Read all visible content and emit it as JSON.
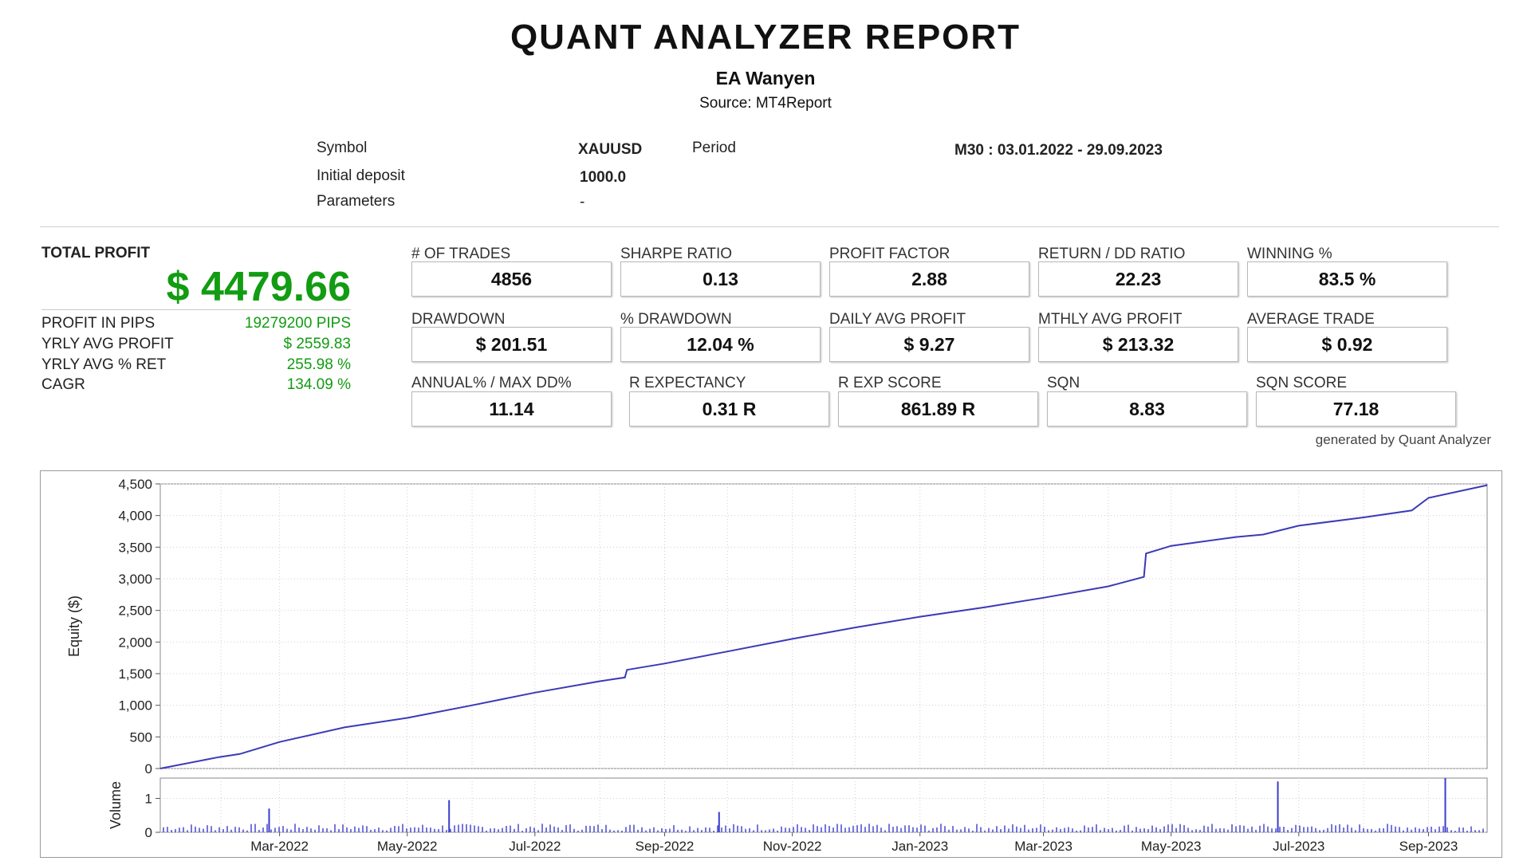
{
  "header": {
    "title": "QUANT ANALYZER REPORT",
    "subtitle": "EA Wanyen",
    "source": "Source: MT4Report"
  },
  "meta": {
    "symbol_label": "Symbol",
    "symbol_value": "XAUUSD",
    "period_label": "Period",
    "period_value": "M30 : 03.01.2022 - 29.09.2023",
    "deposit_label": "Initial deposit",
    "deposit_value": "1000.0",
    "params_label": "Parameters",
    "params_value": "-"
  },
  "summary": {
    "total_profit_label": "TOTAL PROFIT",
    "total_profit_value": "$ 4479.66",
    "profit_pips_label": "PROFIT IN PIPS",
    "profit_pips_value": "19279200 PIPS",
    "yrly_avg_profit_label": "YRLY AVG PROFIT",
    "yrly_avg_profit_value": "$ 2559.83",
    "yrly_avg_ret_label": "YRLY AVG % RET",
    "yrly_avg_ret_value": "255.98 %",
    "cagr_label": "CAGR",
    "cagr_value": "134.09 %"
  },
  "stats": {
    "row1": [
      {
        "label": "# OF TRADES",
        "value": "4856"
      },
      {
        "label": "SHARPE RATIO",
        "value": "0.13"
      },
      {
        "label": "PROFIT FACTOR",
        "value": "2.88"
      },
      {
        "label": "RETURN / DD RATIO",
        "value": "22.23"
      },
      {
        "label": "WINNING %",
        "value": "83.5 %"
      }
    ],
    "row2": [
      {
        "label": "DRAWDOWN",
        "value": "$ 201.51"
      },
      {
        "label": "% DRAWDOWN",
        "value": "12.04 %"
      },
      {
        "label": "DAILY AVG PROFIT",
        "value": "$ 9.27"
      },
      {
        "label": "MTHLY AVG PROFIT",
        "value": "$ 213.32"
      },
      {
        "label": "AVERAGE TRADE",
        "value": "$ 0.92"
      }
    ],
    "row3": [
      {
        "label": "ANNUAL% / MAX DD%",
        "value": "11.14"
      },
      {
        "label": "R EXPECTANCY",
        "value": "0.31 R"
      },
      {
        "label": "R EXP SCORE",
        "value": "861.89 R"
      },
      {
        "label": "SQN",
        "value": "8.83"
      },
      {
        "label": "SQN SCORE",
        "value": "77.18"
      }
    ]
  },
  "generated_by": "generated by Quant Analyzer",
  "colors": {
    "profit_green": "#129c12",
    "series_line": "#3a3ab8",
    "volume_bar": "#3b3bcc"
  },
  "chart_data": [
    {
      "type": "line",
      "ylabel": "Equity ($)",
      "ylim": [
        0,
        4500
      ],
      "yticks": [
        0,
        500,
        1000,
        1500,
        2000,
        2500,
        3000,
        3500,
        4000,
        4500
      ],
      "ytick_labels": [
        "0",
        "500",
        "1,000",
        "1,500",
        "2,000",
        "2,500",
        "3,000",
        "3,500",
        "4,000",
        "4,500"
      ],
      "grid": true,
      "x": [
        "2022-01-03",
        "2022-01-31",
        "2022-02-10",
        "2022-03-01",
        "2022-04-01",
        "2022-05-01",
        "2022-06-01",
        "2022-07-01",
        "2022-08-01",
        "2022-08-13",
        "2022-08-14",
        "2022-09-01",
        "2022-10-01",
        "2022-11-01",
        "2022-12-01",
        "2023-01-01",
        "2023-02-01",
        "2023-03-01",
        "2023-04-01",
        "2023-04-18",
        "2023-04-19",
        "2023-05-01",
        "2023-06-01",
        "2023-06-14",
        "2023-07-01",
        "2023-08-01",
        "2023-08-24",
        "2023-09-01",
        "2023-09-29"
      ],
      "values": [
        0,
        180,
        230,
        420,
        650,
        800,
        1000,
        1200,
        1380,
        1440,
        1560,
        1660,
        1850,
        2050,
        2230,
        2400,
        2550,
        2700,
        2880,
        3030,
        3400,
        3520,
        3660,
        3700,
        3840,
        3970,
        4080,
        4280,
        4480
      ]
    },
    {
      "type": "bar",
      "ylabel": "Volume",
      "ylim": [
        0,
        1.6
      ],
      "yticks": [
        0,
        1
      ],
      "ytick_labels": [
        "0",
        "1"
      ],
      "grid": true,
      "xtick_labels": [
        "Mar-2022",
        "May-2022",
        "Jul-2022",
        "Sep-2022",
        "Nov-2022",
        "Jan-2023",
        "Mar-2023",
        "May-2023",
        "Jul-2023",
        "Sep-2023"
      ],
      "spikes": [
        {
          "date": "2022-02-24",
          "value": 0.7
        },
        {
          "date": "2022-05-21",
          "value": 0.95
        },
        {
          "date": "2022-09-27",
          "value": 0.6
        },
        {
          "date": "2023-06-21",
          "value": 1.5
        },
        {
          "date": "2023-09-09",
          "value": 1.6
        }
      ],
      "baseline_volume": 0.15
    }
  ]
}
